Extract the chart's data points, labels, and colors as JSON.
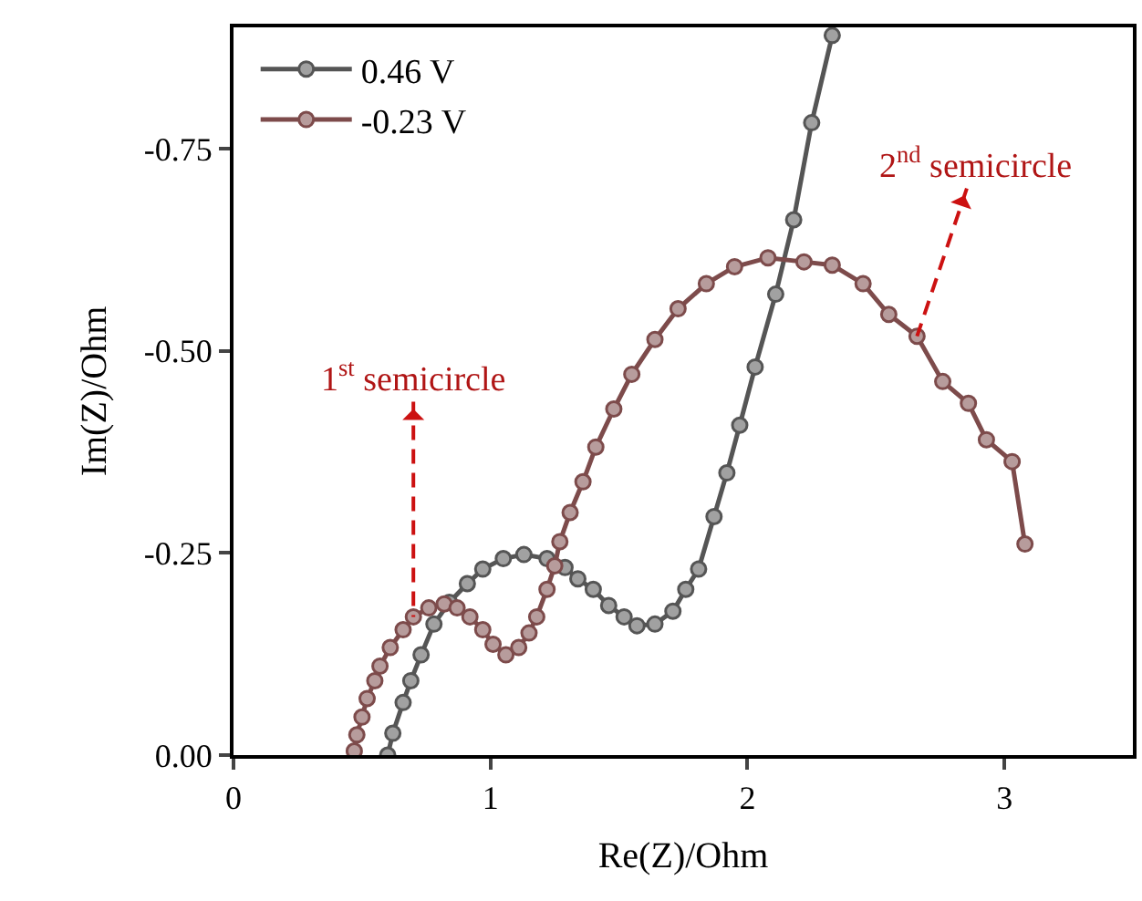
{
  "chart_data": {
    "type": "line",
    "xlabel": "Re(Z)/Ohm",
    "ylabel": "Im(Z)/Ohm",
    "xlim": [
      0,
      3.5
    ],
    "xticks": [
      0,
      1,
      2,
      3
    ],
    "ylim": [
      0,
      -0.9
    ],
    "yticks": [
      {
        "value": 0,
        "label": "0.00"
      },
      -0.25,
      {
        "value": -0.5,
        "label": "-0.50"
      },
      -0.75
    ],
    "legend": "top left",
    "marker": "circle",
    "line_style": "solid",
    "series": [
      {
        "name": "0.46 V",
        "color": "#555555",
        "x": [
          0.6,
          0.62,
          0.66,
          0.69,
          0.73,
          0.78,
          0.84,
          0.91,
          0.97,
          1.05,
          1.13,
          1.22,
          1.29,
          1.34,
          1.4,
          1.46,
          1.52,
          1.57,
          1.64,
          1.71,
          1.76,
          1.81,
          1.87,
          1.92,
          1.97,
          2.03,
          2.11,
          2.18,
          2.25,
          2.33
        ],
        "values": [
          0,
          -0.027,
          -0.065,
          -0.092,
          -0.124,
          -0.162,
          -0.189,
          -0.212,
          -0.23,
          -0.243,
          -0.248,
          -0.243,
          -0.232,
          -0.218,
          -0.205,
          -0.185,
          -0.171,
          -0.16,
          -0.162,
          -0.178,
          -0.205,
          -0.23,
          -0.295,
          -0.349,
          -0.408,
          -0.48,
          -0.57,
          -0.662,
          -0.782,
          -0.89
        ]
      },
      {
        "name": "-0.23 V",
        "color": "#7d4b4b",
        "x": [
          0.47,
          0.48,
          0.5,
          0.52,
          0.55,
          0.57,
          0.61,
          0.66,
          0.7,
          0.76,
          0.82,
          0.87,
          0.92,
          0.97,
          1.01,
          1.06,
          1.11,
          1.15,
          1.18,
          1.22,
          1.25,
          1.27,
          1.31,
          1.36,
          1.41,
          1.48,
          1.55,
          1.64,
          1.73,
          1.84,
          1.95,
          2.08,
          2.22,
          2.33,
          2.45,
          2.55,
          2.66,
          2.76,
          2.86,
          2.93,
          3.03,
          3.08
        ],
        "values": [
          -0.005,
          -0.025,
          -0.047,
          -0.07,
          -0.092,
          -0.11,
          -0.133,
          -0.155,
          -0.171,
          -0.182,
          -0.187,
          -0.182,
          -0.171,
          -0.155,
          -0.137,
          -0.124,
          -0.133,
          -0.151,
          -0.171,
          -0.205,
          -0.234,
          -0.264,
          -0.3,
          -0.338,
          -0.381,
          -0.428,
          -0.471,
          -0.514,
          -0.552,
          -0.583,
          -0.604,
          -0.615,
          -0.61,
          -0.606,
          -0.583,
          -0.545,
          -0.518,
          -0.462,
          -0.435,
          -0.39,
          -0.363,
          -0.261
        ]
      }
    ],
    "annotations": [
      {
        "text": "1$^{st}$ semicircle",
        "x": 0.7,
        "y": -0.171
      },
      {
        "text": "2$^{nd}$ semicircle",
        "x": 2.66,
        "y": -0.518
      }
    ]
  }
}
